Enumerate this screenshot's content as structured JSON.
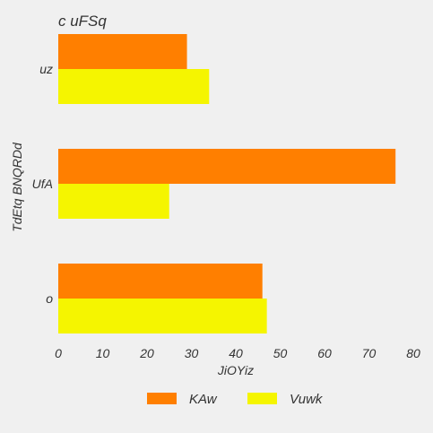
{
  "chart_data": {
    "type": "bar",
    "orientation": "horizontal",
    "title": "c uFSq",
    "xlabel": "JiOYiz",
    "ylabel": "TdEtq BNQRDd",
    "categories": [
      "uz",
      "UfA",
      "o"
    ],
    "series": [
      {
        "name": "KAw",
        "values": [
          29,
          76,
          46
        ],
        "color": "#ff7f00"
      },
      {
        "name": "Vuwk",
        "values": [
          34,
          25,
          47
        ],
        "color": "#f5f500"
      }
    ],
    "xlim": [
      0,
      80
    ],
    "xticks": [
      0,
      10,
      20,
      30,
      40,
      50,
      60,
      70,
      80
    ],
    "grid": false,
    "legend_position": "bottom"
  }
}
